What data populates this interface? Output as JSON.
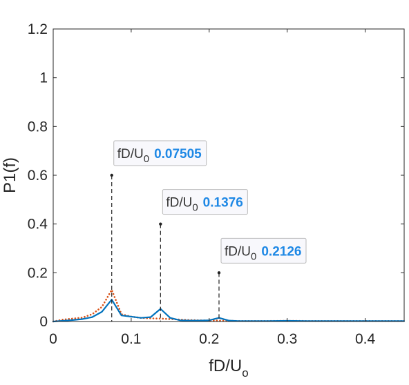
{
  "chart_data": {
    "type": "line",
    "xlabel": "fD/U",
    "xlabel_sub": "o",
    "ylabel": "P1(f)",
    "xlim": [
      0,
      0.45
    ],
    "ylim": [
      0,
      1.2
    ],
    "xticks": [
      0,
      0.1,
      0.2,
      0.3,
      0.4
    ],
    "xtick_labels": [
      "0",
      "0.1",
      "0.2",
      "0.3",
      "0.4"
    ],
    "yticks": [
      0,
      0.2,
      0.4,
      0.6,
      0.8,
      1,
      1.2
    ],
    "ytick_labels": [
      "0",
      "0.2",
      "0.4",
      "0.6",
      "0.8",
      "1",
      "1.2"
    ],
    "grid": false,
    "series": [
      {
        "style": "solid",
        "color": "#0072BD",
        "x": [
          0,
          0.0125,
          0.025,
          0.0375,
          0.05,
          0.0625,
          0.07505,
          0.0875,
          0.1,
          0.1125,
          0.125,
          0.1376,
          0.15,
          0.1625,
          0.175,
          0.1875,
          0.2,
          0.2126,
          0.225,
          0.2375,
          0.25,
          0.275,
          0.3,
          0.325,
          0.35,
          0.375,
          0.4,
          0.425,
          0.45
        ],
        "y": [
          0.0,
          0.003,
          0.006,
          0.01,
          0.018,
          0.04,
          0.09,
          0.025,
          0.02,
          0.015,
          0.018,
          0.052,
          0.015,
          0.005,
          0.004,
          0.004,
          0.005,
          0.015,
          0.004,
          0.002,
          0.002,
          0.002,
          0.003,
          0.002,
          0.002,
          0.002,
          0.002,
          0.002,
          0.002
        ]
      },
      {
        "style": "dotted",
        "color": "#D95319",
        "x": [
          0,
          0.0125,
          0.025,
          0.0375,
          0.05,
          0.0625,
          0.07505,
          0.0875,
          0.1,
          0.1125,
          0.125,
          0.1376,
          0.15,
          0.1625,
          0.175,
          0.1875,
          0.2,
          0.2126,
          0.225,
          0.2375,
          0.25,
          0.275,
          0.3,
          0.325,
          0.35,
          0.375,
          0.4,
          0.425,
          0.45
        ],
        "y": [
          0.0,
          0.008,
          0.012,
          0.016,
          0.03,
          0.06,
          0.13,
          0.03,
          0.02,
          0.015,
          0.013,
          0.012,
          0.01,
          0.008,
          0.006,
          0.005,
          0.004,
          0.004,
          0.003,
          0.002,
          0.002,
          0.002,
          0.003,
          0.002,
          0.002,
          0.002,
          0.002,
          0.002,
          0.002
        ]
      }
    ],
    "annotations": [
      {
        "label": "fD/U",
        "sub": "0",
        "value": "0.07505",
        "x": 0.07505,
        "y": 0.6
      },
      {
        "label": "fD/U",
        "sub": "0",
        "value": "0.1376",
        "x": 0.1376,
        "y": 0.4
      },
      {
        "label": "fD/U",
        "sub": "0",
        "value": "0.2126",
        "x": 0.2126,
        "y": 0.2
      }
    ],
    "value_color": "#1E88E5"
  }
}
